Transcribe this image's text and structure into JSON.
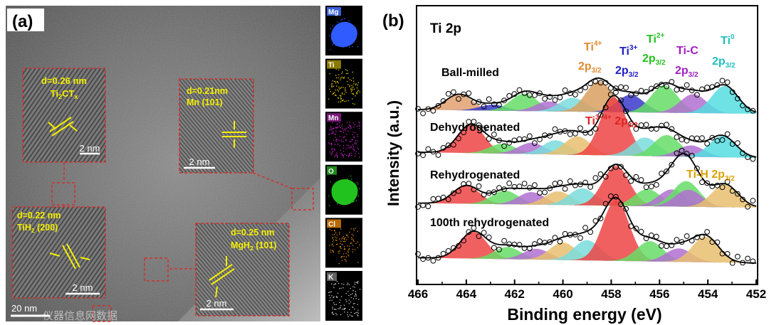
{
  "panel_a": {
    "label": "(a)",
    "scale_bar": "20 nm",
    "watermark": "仪器信息网数据",
    "insets": [
      {
        "name": "ti2ctx",
        "line1": "d=0.26 nm",
        "line2_main": "Ti",
        "line2_sub1": "2",
        "line2_mid": "CT",
        "line2_sub2": "x",
        "scale": "2 nm"
      },
      {
        "name": "mn",
        "line1": "d=0.21nm",
        "line2_main": "Mn (101)",
        "scale": "2 nm"
      },
      {
        "name": "tih2",
        "line1": "d=0.22 nm",
        "line2_main": "TiH",
        "line2_sub1": "2",
        "line2_tail": " (200)",
        "scale": "2 nm"
      },
      {
        "name": "mgh2",
        "line1": "d=0.25 nm",
        "line2_main": "MgH",
        "line2_sub1": "2",
        "line2_tail": " (101)",
        "scale": "2 nm"
      }
    ],
    "eds_maps": [
      {
        "element": "Mg",
        "color": "#2f5bff",
        "label_bg": "#3a62d8"
      },
      {
        "element": "Ti",
        "color": "#e8d000",
        "label_bg": "#8a7a00"
      },
      {
        "element": "Mn",
        "color": "#c020c0",
        "label_bg": "#7a1a7a"
      },
      {
        "element": "O",
        "color": "#22c21e",
        "label_bg": "#1d8a1a"
      },
      {
        "element": "Cl",
        "color": "#e08a10",
        "label_bg": "#b86a00"
      },
      {
        "element": "K",
        "color": "#cfcfcf",
        "label_bg": "#606060"
      }
    ]
  },
  "panel_b": {
    "label": "(b)",
    "chart_data": {
      "type": "area",
      "title": "Ti 2p",
      "xlabel": "Binding energy (eV)",
      "ylabel": "Intensity (a.u.)",
      "xlim": [
        466,
        452
      ],
      "xticks": [
        "466",
        "464",
        "462",
        "460",
        "458",
        "456",
        "454",
        "452"
      ],
      "series": [
        {
          "name": "Ball-milled",
          "components": [
            {
              "center": 464.3,
              "height": 0.32,
              "color": "#e0a070"
            },
            {
              "center": 462.9,
              "height": 0.12,
              "color": "#3a3acc"
            },
            {
              "center": 461.6,
              "height": 0.35,
              "color": "#66dd66"
            },
            {
              "center": 460.6,
              "height": 0.2,
              "color": "#b070d0"
            },
            {
              "center": 459.6,
              "height": 0.28,
              "color": "#7adcdc"
            },
            {
              "center": 458.5,
              "height": 0.62,
              "color": "#d9a060"
            },
            {
              "center": 457.2,
              "height": 0.35,
              "color": "#3a3acc"
            },
            {
              "center": 455.8,
              "height": 0.55,
              "color": "#66dd66"
            },
            {
              "center": 454.6,
              "height": 0.38,
              "color": "#b070d0"
            },
            {
              "center": 453.3,
              "height": 0.55,
              "color": "#55dde0"
            }
          ]
        },
        {
          "name": "Dehydrogenated",
          "components": [
            {
              "center": 463.8,
              "height": 0.4,
              "color": "#ee4444"
            },
            {
              "center": 462.5,
              "height": 0.14,
              "color": "#66dd66"
            },
            {
              "center": 461.3,
              "height": 0.16,
              "color": "#b070d0"
            },
            {
              "center": 460.3,
              "height": 0.2,
              "color": "#7adcdc"
            },
            {
              "center": 459.4,
              "height": 0.26,
              "color": "#e8c070"
            },
            {
              "center": 457.9,
              "height": 0.82,
              "color": "#ee4444"
            },
            {
              "center": 456.6,
              "height": 0.26,
              "color": "#7adcdc"
            },
            {
              "center": 455.7,
              "height": 0.3,
              "color": "#66dd66"
            },
            {
              "center": 454.7,
              "height": 0.16,
              "color": "#b070d0"
            },
            {
              "center": 453.4,
              "height": 0.3,
              "color": "#55dde0"
            }
          ]
        },
        {
          "name": "Rehydrogenated",
          "components": [
            {
              "center": 464.0,
              "height": 0.32,
              "color": "#ee4444"
            },
            {
              "center": 462.4,
              "height": 0.24,
              "color": "#66dd66"
            },
            {
              "center": 461.3,
              "height": 0.22,
              "color": "#b070d0"
            },
            {
              "center": 460.2,
              "height": 0.24,
              "color": "#e8c070"
            },
            {
              "center": 459.2,
              "height": 0.3,
              "color": "#7adcdc"
            },
            {
              "center": 457.8,
              "height": 0.7,
              "color": "#ee4444"
            },
            {
              "center": 456.5,
              "height": 0.3,
              "color": "#66dd66"
            },
            {
              "center": 455.5,
              "height": 0.3,
              "color": "#b070d0"
            },
            {
              "center": 454.9,
              "height": 0.45,
              "color": "#66dd66"
            },
            {
              "center": 454.8,
              "height": 0.3,
              "color": "#b070d0"
            },
            {
              "center": 453.3,
              "height": 0.4,
              "color": "#e8c070"
            }
          ]
        },
        {
          "name": "100th rehydrogenated",
          "components": [
            {
              "center": 463.7,
              "height": 0.4,
              "color": "#ee4444"
            },
            {
              "center": 462.3,
              "height": 0.18,
              "color": "#66dd66"
            },
            {
              "center": 461.1,
              "height": 0.16,
              "color": "#b070d0"
            },
            {
              "center": 460.0,
              "height": 0.26,
              "color": "#e8c070"
            },
            {
              "center": 459.0,
              "height": 0.3,
              "color": "#7adcdc"
            },
            {
              "center": 457.8,
              "height": 0.9,
              "color": "#ee4444"
            },
            {
              "center": 456.4,
              "height": 0.3,
              "color": "#66dd66"
            },
            {
              "center": 455.2,
              "height": 0.2,
              "color": "#b070d0"
            },
            {
              "center": 454.1,
              "height": 0.38,
              "color": "#e8c070"
            }
          ]
        }
      ],
      "peak_labels": [
        {
          "text_sup": "4+",
          "base": "Ti",
          "line2": "2p",
          "sub": "3/2",
          "color": "#e08a30"
        },
        {
          "text_sup": "3+",
          "base": "Ti",
          "line2": "2p",
          "sub": "3/2",
          "color": "#2020c0"
        },
        {
          "text_sup": "2+",
          "base": "Ti",
          "line2": "2p",
          "sub": "3/2",
          "color": "#22c21e"
        },
        {
          "text_sup": "",
          "base": "Ti-C",
          "line2": "2p",
          "sub": "3/2",
          "color": "#a020c0"
        },
        {
          "text_sup": "0",
          "base": "Ti",
          "line2": "2p",
          "sub": "3/2",
          "color": "#20c0c0"
        },
        {
          "text_sup": "3~4+",
          "base": "Ti",
          "line2": "2p",
          "sub": "3/2",
          "color": "#e02020"
        },
        {
          "text_sup": "",
          "base": "Ti-H 2p",
          "line2": "",
          "sub": "3/2",
          "color": "#d9a000"
        }
      ]
    }
  }
}
